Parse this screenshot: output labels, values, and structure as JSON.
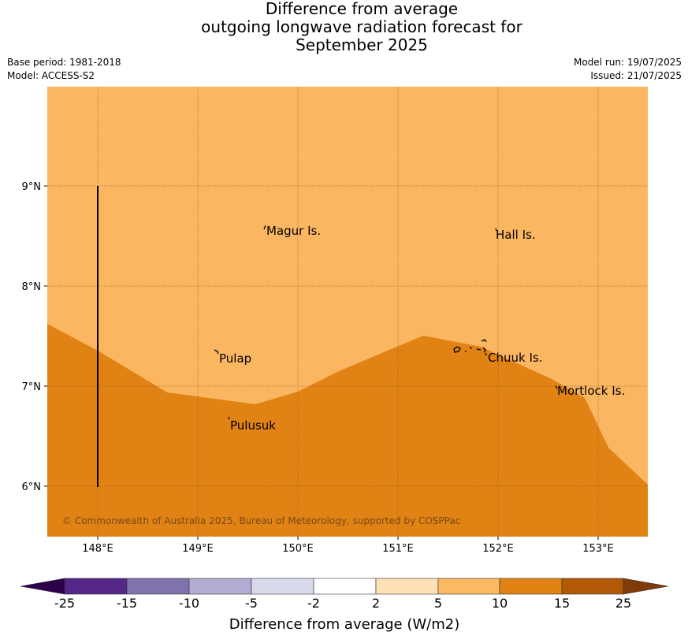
{
  "title": {
    "line1": "Difference from average",
    "line2": "outgoing longwave radiation forecast for",
    "line3": "September 2025"
  },
  "info": {
    "base_period": "Base period: 1981-2018",
    "model": "Model: ACCESS-S2",
    "model_run": "Model run: 19/07/2025",
    "issued": "Issued: 21/07/2025"
  },
  "map": {
    "lat_labels": [
      "9°N",
      "8°N",
      "7°N",
      "6°N"
    ],
    "lon_labels": [
      "148°E",
      "149°E",
      "150°E",
      "151°E",
      "152°E",
      "153°E"
    ],
    "places": [
      "Magur Is.",
      "Hall Is.",
      "Pulap",
      "Chuuk Is.",
      "Mortlock Is.",
      "Pulusuk"
    ],
    "copyright": "© Commonwealth of Australia 2025, Bureau of Meteorology, supported by COSPPac",
    "region_colors": {
      "upper": "#fbb661",
      "lower": "#e08214"
    }
  },
  "legend": {
    "label": "Difference from average (W/m2)",
    "ticks": [
      "-25",
      "-15",
      "-10",
      "-5",
      "-2",
      "2",
      "5",
      "10",
      "15",
      "25"
    ],
    "colors": [
      "#2d004b",
      "#542788",
      "#8073ac",
      "#b2abd2",
      "#d8daeb",
      "#ffffff",
      "#fee0b6",
      "#fdb863",
      "#e08214",
      "#b35806",
      "#7f3b08"
    ]
  }
}
